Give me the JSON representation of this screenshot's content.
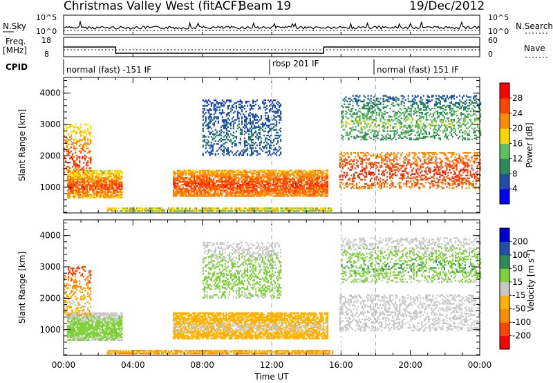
{
  "header": {
    "title": "Christmas Valley West (fitACF)",
    "beam": "Beam 19",
    "date": "19/Dec/2012"
  },
  "top_panels": {
    "nsky_label": "N.Sky",
    "nsky_ticks": [
      "10^5",
      "10^0"
    ],
    "nsearch_label": "N.Search",
    "nsearch_ticks": [
      "10^5",
      "10^0"
    ],
    "freq_label": "Freq.",
    "freq_unit": "[MHz]",
    "freq_ticks": [
      "18",
      "8"
    ],
    "nave_label": "Nave",
    "nave_ticks": [
      "60",
      "0"
    ],
    "cpid_label": "CPID"
  },
  "cpid_segments": [
    {
      "label": "normal (fast) -151 IF",
      "start_hour": 0,
      "end_hour": 12
    },
    {
      "label": "rbsp 201 IF",
      "start_hour": 12,
      "end_hour": 18
    },
    {
      "label": "normal (fast) 151 IF",
      "start_hour": 18,
      "end_hour": 24
    }
  ],
  "chart_data": [
    {
      "type": "heatmap",
      "name": "power",
      "ylabel": "Slant Range [km]",
      "ylim": [
        180,
        4500
      ],
      "yticks": [
        1000,
        2000,
        3000,
        4000
      ],
      "xlim": [
        0,
        24
      ],
      "colorbar": {
        "label": "Power [dB]",
        "ticks": [
          "4",
          "8",
          "12",
          "16",
          "20",
          "24",
          "28"
        ],
        "colors": [
          "#0000ff",
          "#1e50aa",
          "#2e8b57",
          "#5fbf5f",
          "#ffd700",
          "#ff8c00",
          "#ff4500",
          "#ff0000"
        ]
      }
    },
    {
      "type": "heatmap",
      "name": "velocity",
      "ylabel": "Slant Range [km]",
      "ylim": [
        180,
        4500
      ],
      "yticks": [
        1000,
        2000,
        3000,
        4000
      ],
      "xlim": [
        0,
        24
      ],
      "xlabel": "Time UT",
      "xticks": [
        "00:00",
        "04:00",
        "08:00",
        "12:00",
        "16:00",
        "20:00",
        "00:00"
      ],
      "colorbar": {
        "label": "Velocity [m s",
        "label_sup": "-1",
        "label_end": "]",
        "ticks": [
          "-200",
          "-100",
          "-50",
          "-15",
          "15",
          "50",
          "100",
          "200"
        ],
        "colors": [
          "#ff0000",
          "#ff4500",
          "#ff8c00",
          "#ffb300",
          "#c8c8c8",
          "#7fd13b",
          "#2e8b57",
          "#1e50aa",
          "#0000cc"
        ]
      }
    }
  ],
  "freq_series": [
    {
      "start_hour": 0,
      "end_hour": 3,
      "mhz": 15
    },
    {
      "start_hour": 3,
      "end_hour": 15,
      "mhz": 10.5
    },
    {
      "start_hour": 15,
      "end_hour": 24,
      "mhz": 15
    }
  ]
}
